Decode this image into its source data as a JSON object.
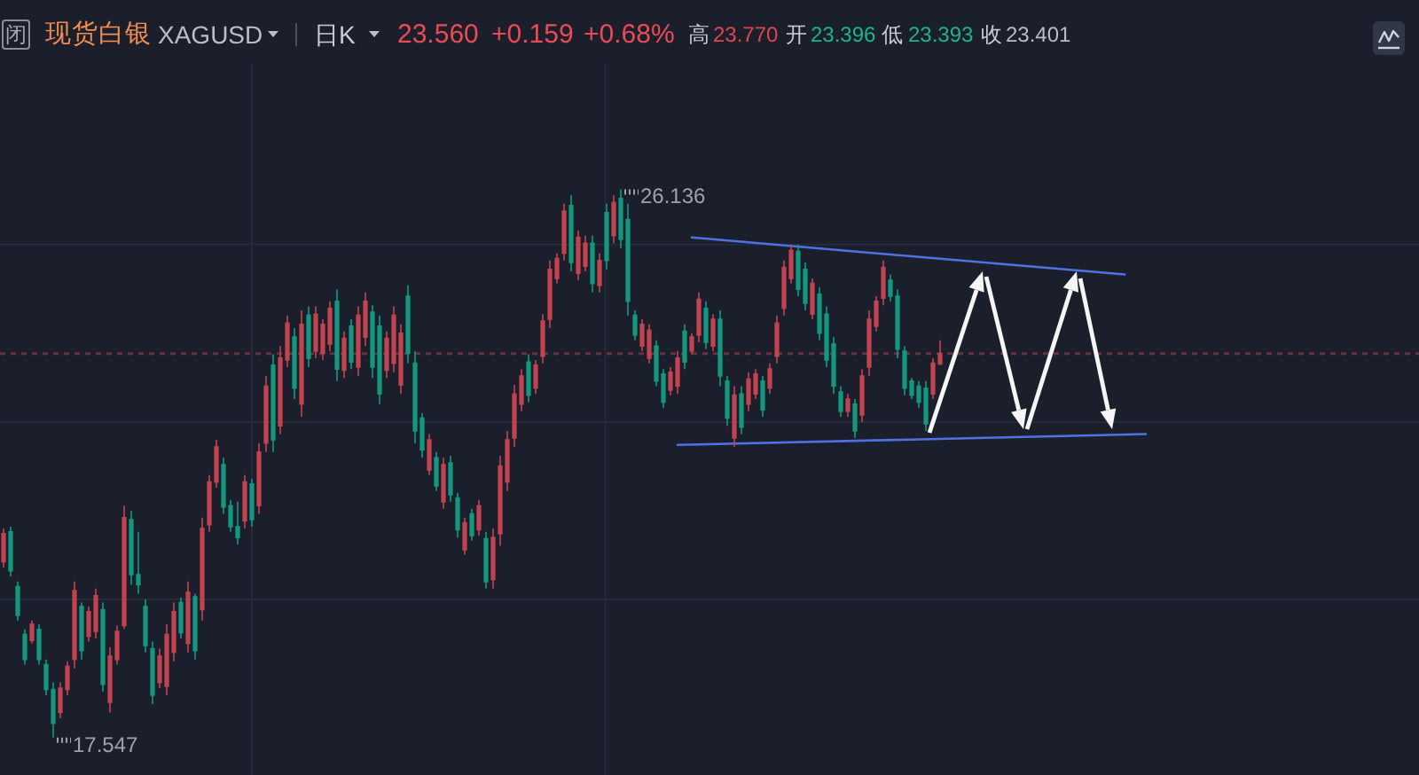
{
  "chart_data": {
    "type": "candlestick",
    "title": "现货白银",
    "subtitle": "XAGUSD",
    "categories": [
      null,
      null,
      null,
      null,
      null,
      null,
      null,
      null,
      null,
      null,
      null,
      null,
      null,
      null,
      null,
      null,
      null,
      null,
      null,
      null,
      null,
      null,
      null,
      null,
      null,
      null,
      null,
      null,
      null,
      null,
      null,
      null,
      null,
      null,
      null,
      null,
      null,
      null,
      null,
      null,
      null,
      null,
      null,
      null,
      null,
      null,
      null,
      null,
      null,
      null,
      null,
      null,
      null,
      null,
      null,
      null,
      null,
      null,
      null,
      null,
      null,
      null,
      null,
      null,
      null,
      null,
      null,
      null,
      null,
      null,
      null,
      null,
      null,
      null,
      null,
      null,
      null,
      null,
      null,
      null,
      null,
      null,
      null,
      null,
      null,
      null,
      null,
      null,
      null,
      null,
      null,
      null,
      null,
      null,
      null,
      null,
      null,
      null,
      null,
      null,
      null,
      null,
      null,
      null,
      null,
      null,
      null,
      null,
      null,
      null,
      null,
      null,
      null,
      null,
      null,
      null,
      null,
      null,
      null,
      null,
      null,
      null,
      null,
      null,
      null,
      null,
      null,
      null,
      null,
      null,
      null,
      null,
      null,
      null,
      null,
      null,
      null,
      null,
      null,
      null,
      null,
      null,
      null,
      null,
      null,
      null,
      null,
      null,
      null,
      null,
      null,
      null,
      null,
      null,
      null,
      null,
      null,
      null,
      null,
      null,
      null,
      null,
      null,
      null,
      null,
      null,
      null,
      null,
      null,
      null,
      null,
      null,
      null,
      null,
      null,
      null,
      null,
      null,
      null,
      null,
      null,
      null,
      null,
      null,
      null,
      null,
      null,
      null,
      null,
      null,
      null,
      null,
      null,
      null,
      null,
      null,
      null,
      null,
      null,
      null
    ],
    "ohlc": [
      [
        20.3,
        20.82,
        20.21,
        20.74
      ],
      [
        20.77,
        20.85,
        20.07,
        20.16
      ],
      [
        19.91,
        19.99,
        19.38,
        19.46
      ],
      [
        19.16,
        19.24,
        18.69,
        18.77
      ],
      [
        19.07,
        19.38,
        19.02,
        19.32
      ],
      [
        19.24,
        19.32,
        18.69,
        18.77
      ],
      [
        18.69,
        18.77,
        18.21,
        18.3
      ],
      [
        18.3,
        18.41,
        17.547,
        17.77
      ],
      [
        17.94,
        18.41,
        17.85,
        18.32
      ],
      [
        18.3,
        18.74,
        18.21,
        18.66
      ],
      [
        18.77,
        19.99,
        18.63,
        19.85
      ],
      [
        19.6,
        19.66,
        18.77,
        18.91
      ],
      [
        19.13,
        19.6,
        19.05,
        19.52
      ],
      [
        19.21,
        19.88,
        19.1,
        19.77
      ],
      [
        19.55,
        19.66,
        18.27,
        18.38
      ],
      [
        18.1,
        18.96,
        17.94,
        18.82
      ],
      [
        18.77,
        19.3,
        18.69,
        19.21
      ],
      [
        19.3,
        21.18,
        19.25,
        20.99
      ],
      [
        20.96,
        21.1,
        19.94,
        20.1
      ],
      [
        20.1,
        20.77,
        19.8,
        19.94
      ],
      [
        19.6,
        19.71,
        18.88,
        18.99
      ],
      [
        18.94,
        19.05,
        18.07,
        18.21
      ],
      [
        18.41,
        18.94,
        18.32,
        18.82
      ],
      [
        18.35,
        19.32,
        18.21,
        19.16
      ],
      [
        18.88,
        19.66,
        18.74,
        19.52
      ],
      [
        19.66,
        19.74,
        19.1,
        19.19
      ],
      [
        19.02,
        19.99,
        18.88,
        19.82
      ],
      [
        19.75,
        19.8,
        18.77,
        18.91
      ],
      [
        19.55,
        20.99,
        19.38,
        20.82
      ],
      [
        20.88,
        21.66,
        20.77,
        21.55
      ],
      [
        21.55,
        22.21,
        21.46,
        22.1
      ],
      [
        21.82,
        21.93,
        21.05,
        21.16
      ],
      [
        21.18,
        21.27,
        20.77,
        20.85
      ],
      [
        20.85,
        21.24,
        20.57,
        20.68
      ],
      [
        20.94,
        21.66,
        20.82,
        21.55
      ],
      [
        21.52,
        21.6,
        20.85,
        20.96
      ],
      [
        21.18,
        22.16,
        21.05,
        22.02
      ],
      [
        22.16,
        23.21,
        22.02,
        23.05
      ],
      [
        23.38,
        23.55,
        22.02,
        22.21
      ],
      [
        22.43,
        23.68,
        22.3,
        23.49
      ],
      [
        23.46,
        24.16,
        23.35,
        24.04
      ],
      [
        23.82,
        23.96,
        22.85,
        23.02
      ],
      [
        22.77,
        24.24,
        22.57,
        24.02
      ],
      [
        24.16,
        24.3,
        23.35,
        23.49
      ],
      [
        23.6,
        24.3,
        23.49,
        24.18
      ],
      [
        23.57,
        24.1,
        23.46,
        24.02
      ],
      [
        23.71,
        24.38,
        23.6,
        24.27
      ],
      [
        24.38,
        24.57,
        23.13,
        23.32
      ],
      [
        23.3,
        23.91,
        23.18,
        23.8
      ],
      [
        23.99,
        24.1,
        23.32,
        23.43
      ],
      [
        23.35,
        24.3,
        23.21,
        24.16
      ],
      [
        23.82,
        24.52,
        23.68,
        24.38
      ],
      [
        24.21,
        24.32,
        23.18,
        23.35
      ],
      [
        23.99,
        24.16,
        22.77,
        22.93
      ],
      [
        23.3,
        23.91,
        23.18,
        23.8
      ],
      [
        23.41,
        24.3,
        23.27,
        24.16
      ],
      [
        23.07,
        24.02,
        22.93,
        23.88
      ],
      [
        24.46,
        24.63,
        23.41,
        23.57
      ],
      [
        23.41,
        23.6,
        22.16,
        22.35
      ],
      [
        22.55,
        22.63,
        21.93,
        22.05
      ],
      [
        21.74,
        22.3,
        21.66,
        22.21
      ],
      [
        21.93,
        22.02,
        21.41,
        21.49
      ],
      [
        21.24,
        21.93,
        21.13,
        21.82
      ],
      [
        21.85,
        21.96,
        21.24,
        21.35
      ],
      [
        21.3,
        21.38,
        20.68,
        20.8
      ],
      [
        20.49,
        20.99,
        20.41,
        20.91
      ],
      [
        21.05,
        21.13,
        20.63,
        20.71
      ],
      [
        20.8,
        21.27,
        20.71,
        21.18
      ],
      [
        20.66,
        20.77,
        19.88,
        19.99
      ],
      [
        20.02,
        20.82,
        19.88,
        20.68
      ],
      [
        20.74,
        21.96,
        20.55,
        21.8
      ],
      [
        21.55,
        22.35,
        21.41,
        22.21
      ],
      [
        22.24,
        23.07,
        22.1,
        22.93
      ],
      [
        22.77,
        23.32,
        22.66,
        23.21
      ],
      [
        23.43,
        23.55,
        22.8,
        22.91
      ],
      [
        23.02,
        23.46,
        22.93,
        23.38
      ],
      [
        23.52,
        24.18,
        23.41,
        24.07
      ],
      [
        24.1,
        25.02,
        23.96,
        24.88
      ],
      [
        24.74,
        25.13,
        24.66,
        25.05
      ],
      [
        25.13,
        25.91,
        25.02,
        25.79
      ],
      [
        25.88,
        26.04,
        24.85,
        24.99
      ],
      [
        24.82,
        25.49,
        24.71,
        25.38
      ],
      [
        24.93,
        25.41,
        24.85,
        25.29
      ],
      [
        25.29,
        25.41,
        24.52,
        24.66
      ],
      [
        24.63,
        25.13,
        24.52,
        25.02
      ],
      [
        25.77,
        25.91,
        24.88,
        25.02
      ],
      [
        25.41,
        26.04,
        25.29,
        25.93
      ],
      [
        25.99,
        26.136,
        25.21,
        25.35
      ],
      [
        25.66,
        25.91,
        24.16,
        24.38
      ],
      [
        24.16,
        24.24,
        23.77,
        23.85
      ],
      [
        23.68,
        24.1,
        23.6,
        24.02
      ],
      [
        23.49,
        24.02,
        23.41,
        23.93
      ],
      [
        23.68,
        23.77,
        23.05,
        23.13
      ],
      [
        23.24,
        23.32,
        22.71,
        22.8
      ],
      [
        22.99,
        23.35,
        22.91,
        23.27
      ],
      [
        23.05,
        23.6,
        22.93,
        23.49
      ],
      [
        23.91,
        24.02,
        23.32,
        23.43
      ],
      [
        23.6,
        23.88,
        23.55,
        23.82
      ],
      [
        23.85,
        24.52,
        23.74,
        24.41
      ],
      [
        24.27,
        24.38,
        23.63,
        23.74
      ],
      [
        23.68,
        24.18,
        23.6,
        24.1
      ],
      [
        24.1,
        24.24,
        23.05,
        23.21
      ],
      [
        23.13,
        23.21,
        22.43,
        22.55
      ],
      [
        22.24,
        23.05,
        22.1,
        22.91
      ],
      [
        22.93,
        23.05,
        22.3,
        22.41
      ],
      [
        22.77,
        23.27,
        22.66,
        23.16
      ],
      [
        22.93,
        23.32,
        22.85,
        23.24
      ],
      [
        23.13,
        23.21,
        22.57,
        22.68
      ],
      [
        23.02,
        23.41,
        22.93,
        23.32
      ],
      [
        23.52,
        24.16,
        23.41,
        24.04
      ],
      [
        24.27,
        25.02,
        24.16,
        24.91
      ],
      [
        24.74,
        25.27,
        24.66,
        25.18
      ],
      [
        25.16,
        25.27,
        24.46,
        24.57
      ],
      [
        24.88,
        24.99,
        24.24,
        24.35
      ],
      [
        24.18,
        24.74,
        24.1,
        24.66
      ],
      [
        24.49,
        24.6,
        23.77,
        23.88
      ],
      [
        24.18,
        24.3,
        23.35,
        23.46
      ],
      [
        23.71,
        23.82,
        22.93,
        23.05
      ],
      [
        22.96,
        23.05,
        22.57,
        22.66
      ],
      [
        22.66,
        22.93,
        22.57,
        22.85
      ],
      [
        22.77,
        22.85,
        22.24,
        22.35
      ],
      [
        22.6,
        23.32,
        22.49,
        23.21
      ],
      [
        23.35,
        24.24,
        23.21,
        24.1
      ],
      [
        23.99,
        24.46,
        23.91,
        24.38
      ],
      [
        24.43,
        25.02,
        24.32,
        24.91
      ],
      [
        24.71,
        24.8,
        24.38,
        24.46
      ],
      [
        24.46,
        24.57,
        23.49,
        23.63
      ],
      [
        23.6,
        23.68,
        22.91,
        23.02
      ],
      [
        23.13,
        23.18,
        22.85,
        22.91
      ],
      [
        23.05,
        23.13,
        22.71,
        22.8
      ],
      [
        23.02,
        23.13,
        22.35,
        22.46
      ],
      [
        22.93,
        23.49,
        22.85,
        23.41
      ],
      [
        23.396,
        23.77,
        23.393,
        23.56
      ],
      null,
      null,
      null,
      null,
      null,
      null,
      null,
      null,
      null,
      null,
      null,
      null,
      null,
      null,
      null,
      null,
      null,
      null,
      null,
      null,
      null,
      null,
      null,
      null,
      null,
      null,
      null,
      null,
      null,
      null,
      null,
      null,
      null,
      null,
      null,
      null,
      null,
      null,
      null,
      null,
      null,
      null,
      null,
      null,
      null,
      null,
      null,
      null,
      null,
      null,
      null,
      null,
      null,
      null,
      null,
      null,
      null,
      null,
      null,
      null,
      null,
      null,
      null,
      null,
      null,
      null,
      null
    ],
    "colors": [
      "#c44350",
      "#119a80",
      "#119a80",
      "#119a80",
      "#c44350",
      "#119a80",
      "#119a80",
      "#119a80",
      "#c44350",
      "#c44350",
      "#c44350",
      "#119a80",
      "#c44350",
      "#c44350",
      "#119a80",
      "#c44350",
      "#c44350",
      "#c44350",
      "#119a80",
      "#119a80",
      "#119a80",
      "#119a80",
      "#c44350",
      "#c44350",
      "#c44350",
      "#119a80",
      "#c44350",
      "#119a80",
      "#c44350",
      "#c44350",
      "#c44350",
      "#119a80",
      "#119a80",
      "#119a80",
      "#c44350",
      "#119a80",
      "#c44350",
      "#c44350",
      "#119a80",
      "#c44350",
      "#c44350",
      "#119a80",
      "#c44350",
      "#119a80",
      "#c44350",
      "#c44350",
      "#c44350",
      "#119a80",
      "#c44350",
      "#119a80",
      "#c44350",
      "#c44350",
      "#119a80",
      "#119a80",
      "#c44350",
      "#c44350",
      "#c44350",
      "#119a80",
      "#119a80",
      "#119a80",
      "#c44350",
      "#119a80",
      "#c44350",
      "#119a80",
      "#119a80",
      "#c44350",
      "#119a80",
      "#c44350",
      "#119a80",
      "#c44350",
      "#c44350",
      "#c44350",
      "#c44350",
      "#c44350",
      "#119a80",
      "#c44350",
      "#c44350",
      "#c44350",
      "#c44350",
      "#c44350",
      "#119a80",
      "#c44350",
      "#c44350",
      "#119a80",
      "#c44350",
      "#119a80",
      "#c44350",
      "#119a80",
      "#119a80",
      "#119a80",
      "#c44350",
      "#c44350",
      "#119a80",
      "#119a80",
      "#c44350",
      "#c44350",
      "#119a80",
      "#c44350",
      "#c44350",
      "#119a80",
      "#c44350",
      "#119a80",
      "#119a80",
      "#c44350",
      "#119a80",
      "#c44350",
      "#c44350",
      "#119a80",
      "#c44350",
      "#c44350",
      "#c44350",
      "#c44350",
      "#119a80",
      "#119a80",
      "#c44350",
      "#119a80",
      "#119a80",
      "#119a80",
      "#119a80",
      "#c44350",
      "#119a80",
      "#c44350",
      "#c44350",
      "#c44350",
      "#c44350",
      "#119a80",
      "#119a80",
      "#119a80",
      "#119a80",
      "#119a80",
      "#119a80",
      "#c44350",
      "#c44350",
      null,
      null,
      null,
      null,
      null,
      null,
      null,
      null,
      null,
      null,
      null,
      null,
      null,
      null,
      null,
      null,
      null,
      null,
      null,
      null,
      null,
      null,
      null,
      null,
      null,
      null,
      null,
      null,
      null,
      null,
      null,
      null,
      null,
      null,
      null,
      null,
      null,
      null,
      null,
      null,
      null,
      null,
      null,
      null,
      null,
      null,
      null,
      null,
      null,
      null,
      null,
      null,
      null,
      null,
      null,
      null,
      null,
      null,
      null,
      null,
      null,
      null,
      null,
      null,
      null,
      null,
      null
    ],
    "series": [
      {
        "type": "line",
        "color": "#4f72e3",
        "values": [
          null,
          null,
          null,
          null,
          null,
          null,
          null,
          null,
          null,
          null,
          null,
          null,
          null,
          null,
          null,
          null,
          null,
          null,
          null,
          null,
          null,
          null,
          null,
          null,
          null,
          null,
          null,
          null,
          null,
          null,
          null,
          null,
          null,
          null,
          null,
          null,
          null,
          null,
          null,
          null,
          null,
          null,
          null,
          null,
          null,
          null,
          null,
          null,
          null,
          null,
          null,
          null,
          null,
          null,
          null,
          null,
          null,
          null,
          null,
          null,
          null,
          null,
          null,
          null,
          null,
          null,
          null,
          null,
          null,
          null,
          null,
          null,
          null,
          null,
          null,
          null,
          null,
          null,
          null,
          null,
          null,
          null,
          null,
          null,
          null,
          null,
          null,
          null,
          null,
          null,
          null,
          null,
          null,
          null,
          null,
          null,
          null,
          25.38,
          null,
          null,
          null,
          null,
          null,
          null,
          null,
          null,
          null,
          null,
          null,
          null,
          null,
          null,
          null,
          null,
          null,
          null,
          null,
          null,
          null,
          null,
          null,
          null,
          null,
          null,
          null,
          null,
          null,
          null,
          null,
          null,
          null,
          null,
          null,
          null,
          null,
          null,
          null,
          null,
          null,
          null,
          null,
          null,
          null,
          null,
          null,
          null,
          null,
          null,
          null,
          null,
          null,
          null,
          null,
          null,
          null,
          null,
          null,
          null,
          24.8,
          null,
          null,
          null,
          null,
          null,
          null,
          null,
          null,
          null,
          null,
          null,
          null,
          null,
          null,
          null,
          null,
          null,
          null,
          null,
          null,
          null,
          null,
          null,
          null,
          null,
          null,
          null,
          null,
          null,
          null,
          null,
          null,
          null,
          null,
          null,
          null,
          null,
          null,
          null,
          null,
          null
        ]
      },
      {
        "type": "line",
        "color": "#4f72e3",
        "values": [
          null,
          null,
          null,
          null,
          null,
          null,
          null,
          null,
          null,
          null,
          null,
          null,
          null,
          null,
          null,
          null,
          null,
          null,
          null,
          null,
          null,
          null,
          null,
          null,
          null,
          null,
          null,
          null,
          null,
          null,
          null,
          null,
          null,
          null,
          null,
          null,
          null,
          null,
          null,
          null,
          null,
          null,
          null,
          null,
          null,
          null,
          null,
          null,
          null,
          null,
          null,
          null,
          null,
          null,
          null,
          null,
          null,
          null,
          null,
          null,
          null,
          null,
          null,
          null,
          null,
          null,
          null,
          null,
          null,
          null,
          null,
          null,
          null,
          null,
          null,
          null,
          null,
          null,
          null,
          null,
          null,
          null,
          null,
          null,
          null,
          null,
          null,
          null,
          null,
          null,
          null,
          null,
          null,
          null,
          null,
          22.13,
          null,
          null,
          null,
          null,
          null,
          null,
          null,
          null,
          null,
          null,
          null,
          null,
          null,
          null,
          null,
          null,
          null,
          null,
          null,
          null,
          null,
          null,
          null,
          null,
          null,
          null,
          null,
          null,
          null,
          null,
          null,
          null,
          null,
          null,
          null,
          null,
          null,
          null,
          null,
          null,
          null,
          null,
          null,
          null,
          null,
          null,
          null,
          null,
          null,
          null,
          null,
          null,
          null,
          null,
          null,
          null,
          null,
          null,
          null,
          null,
          null,
          null,
          null,
          null,
          null,
          22.3,
          null,
          null,
          null,
          null,
          null,
          null,
          null,
          null,
          null,
          null,
          null,
          null,
          null,
          null,
          null,
          null,
          null,
          null,
          null,
          null,
          null,
          null,
          null,
          null,
          null,
          null,
          null,
          null,
          null,
          null,
          null,
          null,
          null,
          null,
          null,
          null,
          null,
          null
        ]
      }
    ],
    "ylim": [
      16.96,
      28.1
    ],
    "yticks": [
      {
        "value": 25.27,
        "label": null
      },
      {
        "value": 22.49,
        "label": null
      },
      {
        "value": 19.71,
        "label": null
      }
    ],
    "grid": true,
    "ref_lines": [
      {
        "axis": "y",
        "value": 23.56,
        "color": "#6a3140",
        "line_style": "dashed"
      }
    ],
    "annotations": [
      "闭",
      "日K",
      "23.560",
      "+0.159",
      "+0.68%",
      "高",
      "23.770",
      "开",
      "23.396",
      "低",
      "23.393",
      "收",
      "23.401",
      "26.136",
      "17.547"
    ]
  }
}
